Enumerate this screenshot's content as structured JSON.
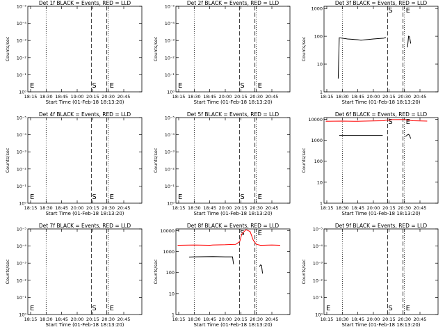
{
  "chart_data": [
    {
      "type": "line",
      "title": "Det 1f BLACK = Events, RED = LLD",
      "xlabel": "Start Time (01-Feb-18 18:13:20)",
      "ylabel": "Counts/sec",
      "xticks": [
        "18:15",
        "18:30",
        "18:45",
        "19:00",
        "20:15",
        "20:30",
        "20:45"
      ],
      "yticks": [
        "10⁰",
        "10⁻¹",
        "10⁻²",
        "10⁻³",
        "10⁻⁴",
        "10⁻⁵"
      ],
      "ylog": false,
      "markers": {
        "dotted": [
          "18:30",
          "20:30"
        ],
        "dashed": [
          "20:15",
          "20:30"
        ],
        "labels": [
          "E",
          "S",
          "E"
        ]
      },
      "series": []
    },
    {
      "type": "line",
      "title": "Det 2f BLACK = Events, RED = LLD",
      "xlabel": "Start Time (01-Feb-18 18:13:20)",
      "ylabel": "Counts/sec",
      "xticks": [
        "18:15",
        "18:30",
        "18:45",
        "20:00",
        "20:15",
        "20:30",
        "20:45"
      ],
      "yticks": [
        "10⁰",
        "10⁻¹",
        "10⁻²",
        "10⁻³",
        "10⁻⁴",
        "10⁻⁵"
      ],
      "ylog": false,
      "markers": {
        "dotted": [
          "18:30",
          "20:30"
        ],
        "dashed": [
          "20:15",
          "20:30"
        ],
        "labels": [
          "E",
          "S",
          "E"
        ]
      },
      "series": []
    },
    {
      "type": "line",
      "title": "Det 3f BLACK = Events, RED = LLD",
      "xlabel": "Start Time (01-Feb-18 18:13:20)",
      "ylabel": "Counts/sec",
      "xticks": [
        "18:15",
        "18:30",
        "18:45",
        "20:00",
        "20:15",
        "20:30",
        "20:45"
      ],
      "yticks": [
        "1",
        "10",
        "100",
        "1000"
      ],
      "ylog": true,
      "ylim": [
        1,
        1200
      ],
      "markers": {
        "dotted": [
          "18:30",
          "20:30"
        ],
        "dashed": [
          "20:15",
          "20:30"
        ],
        "labels": [
          "S",
          "E"
        ]
      },
      "series": [
        {
          "color": "#000000",
          "x": [
            "18:26",
            "18:27",
            "18:35",
            "18:45",
            "19:00",
            "20:00",
            "20:10",
            "20:12"
          ],
          "y": [
            3,
            88,
            80,
            75,
            72,
            80,
            85,
            90
          ]
        },
        {
          "color": "#000000",
          "x": [
            "20:33",
            "20:34",
            "20:35",
            "20:36"
          ],
          "y": [
            40,
            100,
            95,
            55
          ]
        }
      ]
    },
    {
      "type": "line",
      "title": "Det 4f BLACK = Events, RED = LLD",
      "xlabel": "Start Time (01-Feb-18 18:13:20)",
      "ylabel": "Counts/sec",
      "xticks": [
        "18:15",
        "18:30",
        "18:45",
        "20:00",
        "20:15",
        "20:30",
        "20:45"
      ],
      "yticks": [
        "10⁰",
        "10⁻¹",
        "10⁻²",
        "10⁻³",
        "10⁻⁴",
        "10⁻⁵"
      ],
      "ylog": false,
      "markers": {
        "dotted": [
          "18:30",
          "20:30"
        ],
        "dashed": [
          "20:15",
          "20:30"
        ],
        "labels": [
          "E",
          "S",
          "E"
        ]
      },
      "series": []
    },
    {
      "type": "line",
      "title": "Det 5f BLACK = Events, RED = LLD",
      "xlabel": "Start Time (01-Feb-18 18:13:20)",
      "ylabel": "Counts/sec",
      "xticks": [
        "18:15",
        "18:30",
        "18:45",
        "20:00",
        "20:15",
        "20:30",
        "20:45"
      ],
      "yticks": [
        "10⁰",
        "10⁻¹",
        "10⁻²",
        "10⁻³",
        "10⁻⁴",
        "10⁻⁵"
      ],
      "ylog": false,
      "markers": {
        "dotted": [
          "18:30",
          "20:30"
        ],
        "dashed": [
          "20:15",
          "20:30"
        ],
        "labels": [
          "E",
          "S",
          "E"
        ]
      },
      "series": []
    },
    {
      "type": "line",
      "title": "Det 6f BLACK = Events, RED = LLD",
      "xlabel": "Start Time (01-Feb-18 18:13:20)",
      "ylabel": "Counts/sec",
      "xticks": [
        "18:15",
        "18:30",
        "18:45",
        "20:00",
        "20:15",
        "20:30",
        "20:45"
      ],
      "yticks": [
        "1",
        "10",
        "100",
        "1000",
        "10000"
      ],
      "ylog": true,
      "ylim": [
        1,
        12000
      ],
      "markers": {
        "dotted": [
          "18:30",
          "20:30"
        ],
        "dashed": [
          "20:15",
          "20:30"
        ],
        "labels": [
          "S",
          "E"
        ]
      },
      "series": [
        {
          "color": "#ff0000",
          "x": [
            "18:14",
            "18:30",
            "18:45",
            "19:00",
            "20:00",
            "20:10",
            "20:12",
            "20:16",
            "20:18",
            "20:30",
            "20:34",
            "20:38",
            "20:45",
            "20:52"
          ],
          "y": [
            8000,
            8200,
            8000,
            8100,
            8300,
            8500,
            9000,
            9000,
            9600,
            9800,
            9000,
            8500,
            8300,
            8200
          ]
        },
        {
          "color": "#000000",
          "x": [
            "18:27",
            "18:30",
            "19:00",
            "20:00",
            "20:09"
          ],
          "y": [
            1700,
            1700,
            1700,
            1700,
            1700
          ]
        },
        {
          "color": "#000000",
          "x": [
            "20:31",
            "20:33",
            "20:34",
            "20:35",
            "20:36"
          ],
          "y": [
            1500,
            1800,
            1900,
            1700,
            1200
          ]
        }
      ]
    },
    {
      "type": "line",
      "title": "Det 7f BLACK = Events, RED = LLD",
      "xlabel": "Start Time (01-Feb-18 18:13:20)",
      "ylabel": "Counts/sec",
      "xticks": [
        "18:15",
        "18:30",
        "18:45",
        "20:00",
        "20:15",
        "20:30",
        "20:45"
      ],
      "yticks": [
        "10⁰",
        "10⁻¹",
        "10⁻²",
        "10⁻³",
        "10⁻⁴",
        "10⁻⁵"
      ],
      "ylog": false,
      "markers": {
        "dotted": [
          "18:30",
          "20:30"
        ],
        "dashed": [
          "20:15",
          "20:30"
        ],
        "labels": [
          "E",
          "S",
          "E"
        ]
      },
      "series": []
    },
    {
      "type": "line",
      "title": "Det 8f BLACK = Events, RED = LLD",
      "xlabel": "Start Time (01-Feb-18 18:13:20)",
      "ylabel": "Counts/sec",
      "xticks": [
        "18:15",
        "18:30",
        "18:45",
        "20:00",
        "20:15",
        "20:30",
        "20:45"
      ],
      "yticks": [
        "1",
        "10",
        "100",
        "1000",
        "10000"
      ],
      "ylog": true,
      "ylim": [
        1,
        12000
      ],
      "markers": {
        "dotted": [
          "18:30",
          "20:30"
        ],
        "dashed": [
          "20:15",
          "20:30"
        ],
        "labels": [
          "S",
          "E"
        ]
      },
      "series": [
        {
          "color": "#ff0000",
          "x": [
            "18:14",
            "18:30",
            "18:45",
            "19:00",
            "20:00",
            "20:10",
            "20:14",
            "20:16",
            "20:20",
            "20:24",
            "20:27",
            "20:30",
            "20:34",
            "20:45",
            "20:53"
          ],
          "y": [
            2000,
            2050,
            2000,
            2050,
            2100,
            2200,
            3000,
            7000,
            11000,
            9000,
            3500,
            2200,
            2000,
            2050,
            2000
          ]
        },
        {
          "color": "#000000",
          "x": [
            "18:25",
            "18:30",
            "19:00",
            "20:00",
            "20:07",
            "20:08"
          ],
          "y": [
            550,
            560,
            580,
            560,
            560,
            250
          ]
        },
        {
          "color": "#000000",
          "x": [
            "20:33",
            "20:34",
            "20:35",
            "20:36"
          ],
          "y": [
            190,
            230,
            220,
            90
          ]
        }
      ]
    },
    {
      "type": "line",
      "title": "Det 9f BLACK = Events, RED = LLD",
      "xlabel": "Start Time (01-Feb-18 18:13:20)",
      "ylabel": "Counts/sec",
      "xticks": [
        "18:15",
        "18:30",
        "18:45",
        "20:00",
        "20:15",
        "20:30",
        "20:45"
      ],
      "yticks": [
        "10⁰",
        "10⁻¹",
        "10⁻²",
        "10⁻³",
        "10⁻⁴",
        "10⁻⁵"
      ],
      "ylog": false,
      "markers": {
        "dotted": [
          "18:30",
          "20:30"
        ],
        "dashed": [
          "20:15",
          "20:30"
        ],
        "labels": [
          "E",
          "S",
          "E"
        ]
      },
      "series": []
    }
  ]
}
